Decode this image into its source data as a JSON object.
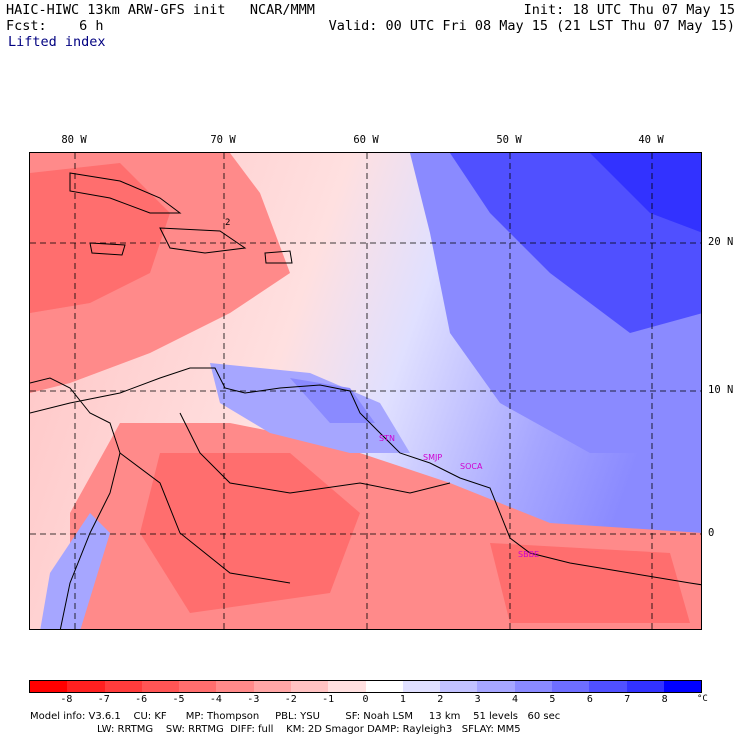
{
  "header": {
    "title": "HAIC-HIWC 13km ARW-GFS init   NCAR/MMM",
    "forecast": "Fcst:    6 h",
    "field": "Lifted index",
    "init": "Init: 18 UTC Thu 07 May 15",
    "valid": "Valid: 00 UTC Fri 08 May 15 (21 LST Thu 07 May 15)"
  },
  "map": {
    "lon_labels": [
      "80 W",
      "70 W",
      "60 W",
      "50 W",
      "40 W"
    ],
    "lat_labels": [
      "20 N",
      "10 N",
      "0"
    ],
    "contour_label": "2",
    "cities": [
      "STN",
      "SMJP",
      "SOCA",
      "SBBE"
    ]
  },
  "colorbar": {
    "ticks": [
      "-8",
      "-7",
      "-6",
      "-5",
      "-4",
      "-3",
      "-2",
      "-1",
      "0",
      "1",
      "2",
      "3",
      "4",
      "5",
      "6",
      "7",
      "8"
    ],
    "unit": "°C",
    "colors": [
      "#ff0000",
      "#ff2020",
      "#ff3c3c",
      "#ff5555",
      "#ff6e6e",
      "#ff8a8a",
      "#ffa6a6",
      "#ffc2c2",
      "#ffe0e0",
      "#ffffff",
      "#e0e0ff",
      "#c2c2ff",
      "#a6a6ff",
      "#8a8aff",
      "#6e6eff",
      "#5050ff",
      "#3232ff",
      "#0000ff"
    ]
  },
  "model_info": {
    "line1": "Model info: V3.6.1    CU: KF      MP: Thompson     PBL: YSU        SF: Noah LSM     13 km    51 levels   60 sec",
    "line2": "LW: RRTMG    SW: RRTMG  DIFF: full    KM: 2D Smagor DAMP: Rayleigh3   SFLAY: MM5"
  }
}
